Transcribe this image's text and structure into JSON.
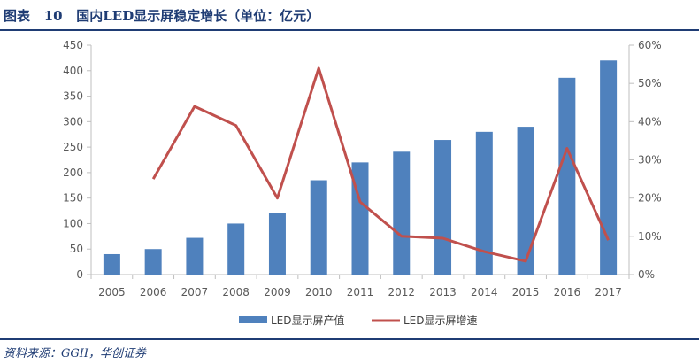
{
  "header": {
    "label": "图表",
    "number": "10",
    "title": "国内LED显示屏稳定增长（单位：亿元）"
  },
  "source": {
    "text": "资料来源：GGII，华创证券"
  },
  "colors": {
    "bar": "#4f81bd",
    "line": "#c0504d",
    "axis": "#bfbfbf",
    "text": "#595959",
    "title": "#1f3c74"
  },
  "chart_data": {
    "type": "bar",
    "title": "国内LED显示屏稳定增长（单位：亿元）",
    "categories": [
      "2005",
      "2006",
      "2007",
      "2008",
      "2009",
      "2010",
      "2011",
      "2012",
      "2013",
      "2014",
      "2015",
      "2016",
      "2017"
    ],
    "series": [
      {
        "name": "LED显示屏产值",
        "type": "bar",
        "axis": "left",
        "values": [
          40,
          50,
          72,
          100,
          120,
          185,
          220,
          241,
          264,
          280,
          290,
          386,
          420
        ]
      },
      {
        "name": "LED显示屏增速",
        "type": "line",
        "axis": "right",
        "values": [
          null,
          0.25,
          0.44,
          0.39,
          0.2,
          0.54,
          0.19,
          0.1,
          0.095,
          0.06,
          0.035,
          0.33,
          0.09
        ]
      }
    ],
    "ylim_left": [
      0,
      450
    ],
    "yticks_left": [
      "0",
      "50",
      "100",
      "150",
      "200",
      "250",
      "300",
      "350",
      "400",
      "450"
    ],
    "ylim_right": [
      0,
      0.6
    ],
    "yticks_right": [
      "0%",
      "10%",
      "20%",
      "30%",
      "40%",
      "50%",
      "60%"
    ],
    "legend": "bottom-center"
  }
}
